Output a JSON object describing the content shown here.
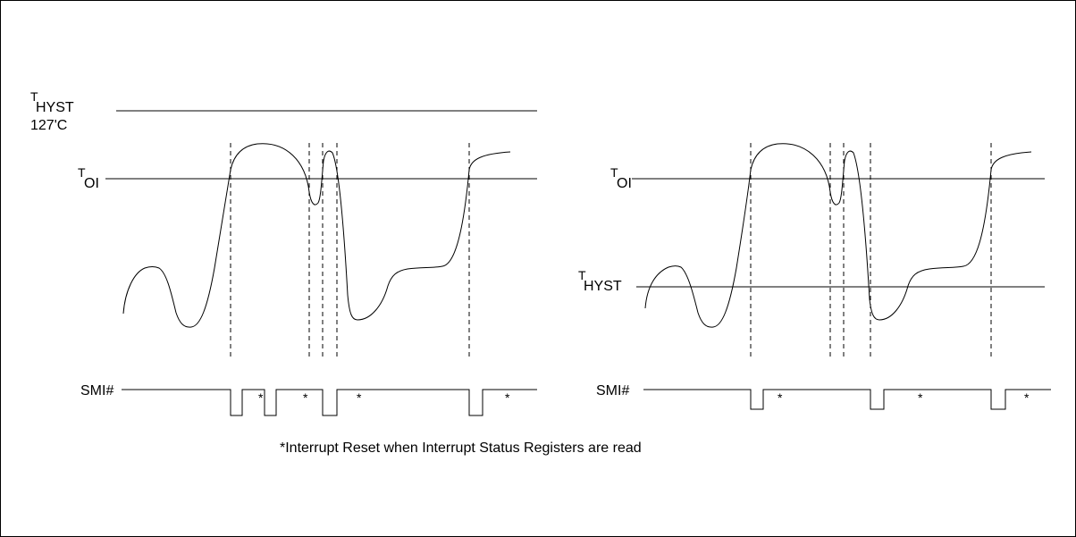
{
  "labels": {
    "t_main": "T",
    "hyst_sub": "HYST",
    "oi_sub": "OI",
    "temp_127": "127'C",
    "smi": "SMI#",
    "asterisk": "*",
    "footnote": "*Interrupt Reset when Interrupt Status Registers are read"
  }
}
